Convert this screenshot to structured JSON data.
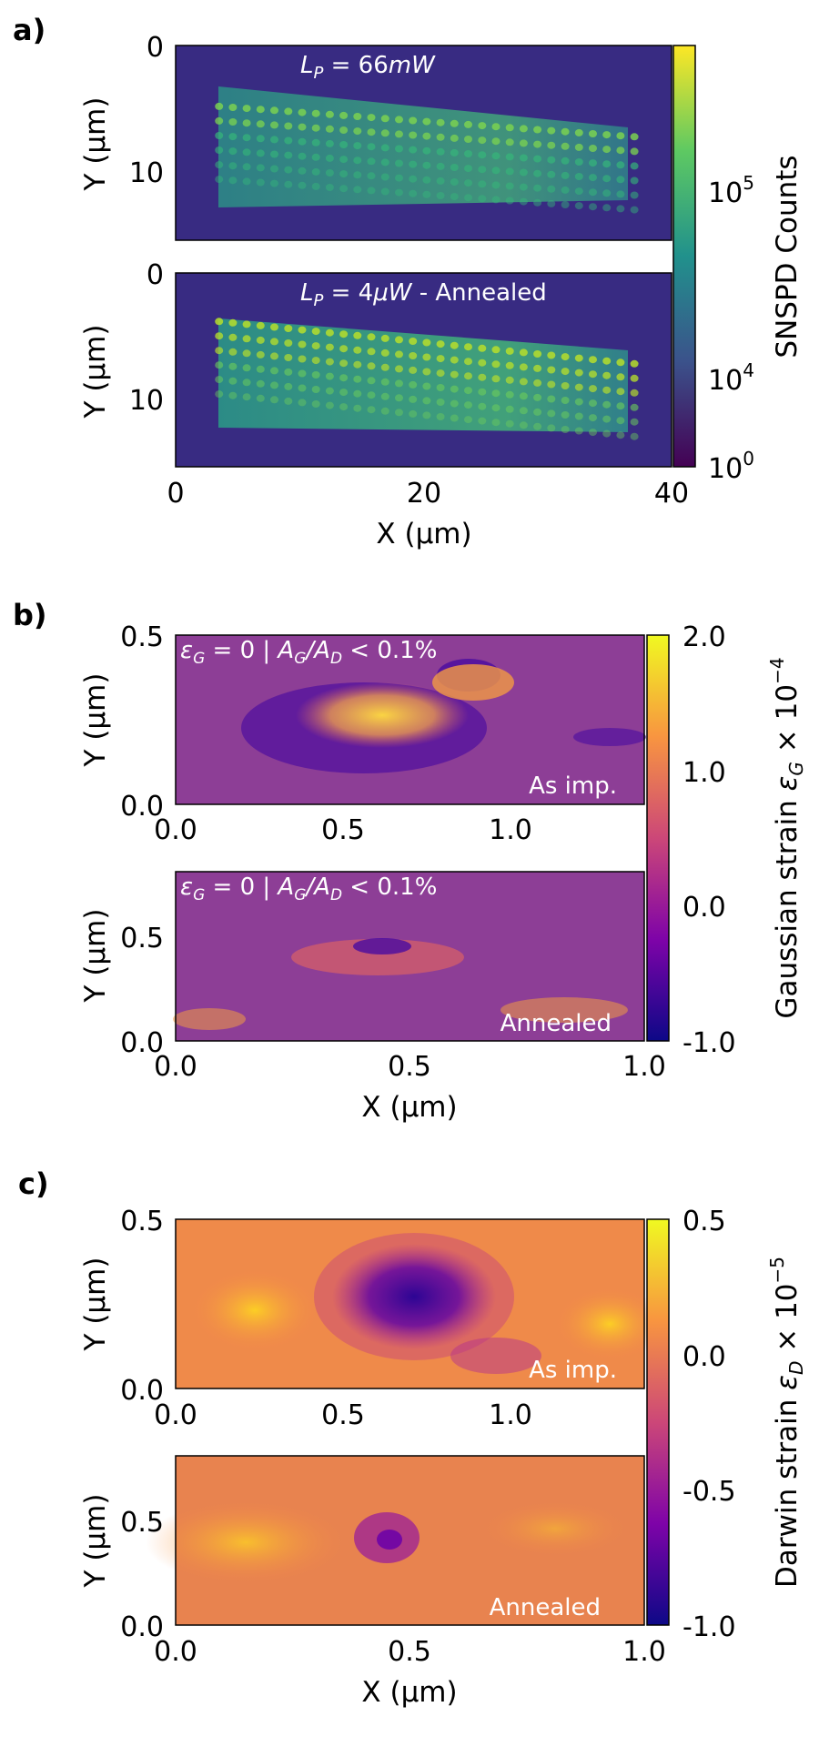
{
  "chart_data": [
    {
      "panel": "a)",
      "type": "heatmap",
      "colormap": "viridis",
      "colorbar": {
        "label": "SNSPD Counts",
        "ticks": [
          "10^5",
          "10^4",
          "10^0"
        ]
      },
      "xlabel": "X (μm)",
      "xticks": [
        "0",
        "20",
        "40"
      ],
      "xlim": [
        0,
        40
      ],
      "subplots": [
        {
          "annotation": "L_P = 66mW",
          "ylabel": "Y (μm)",
          "yticks": [
            "0",
            "10"
          ],
          "ylim": [
            16,
            0
          ],
          "feature": {
            "x_range": [
              3.5,
              37
            ],
            "y_top_left": 5,
            "y_top_right": 7.5,
            "rows": 6,
            "columns": 31
          }
        },
        {
          "annotation": "L_P = 4μW - Annealed",
          "ylabel": "Y (μm)",
          "yticks": [
            "0",
            "10"
          ],
          "ylim": [
            16,
            0
          ],
          "feature": {
            "x_range": [
              3.5,
              37
            ],
            "y_top_left": 4,
            "y_top_right": 7.5,
            "rows": 6,
            "columns": 31
          }
        }
      ]
    },
    {
      "panel": "b)",
      "type": "heatmap",
      "colormap": "plasma",
      "colorbar": {
        "label": "Gaussian strain ε_G × 10^-4",
        "ticks": [
          "2.0",
          "1.0",
          "0.0",
          "-1.0"
        ],
        "range": [
          -1.0,
          2.0
        ]
      },
      "xlabel": "X (μm)",
      "subplots": [
        {
          "annotation": "ε_G = 0 | A_G/A_D < 0.1%",
          "corner_label": "As imp.",
          "ylabel": "Y (μm)",
          "xticks": [
            "0.0",
            "0.5",
            "1.0"
          ],
          "yticks": [
            "0.0",
            "0.5"
          ],
          "xlim": [
            0,
            1.4
          ],
          "ylim": [
            0,
            0.5
          ],
          "background_value": 0.0
        },
        {
          "annotation": "ε_G = 0 | A_G/A_D < 0.1%",
          "corner_label": "Annealed",
          "ylabel": "Y (μm)",
          "xticks": [
            "0.0",
            "0.5",
            "1.0"
          ],
          "yticks": [
            "0.0",
            "0.5"
          ],
          "xlim": [
            0,
            1.0
          ],
          "ylim": [
            0,
            0.78
          ],
          "background_value": 0.0
        }
      ]
    },
    {
      "panel": "c)",
      "type": "heatmap",
      "colormap": "plasma",
      "colorbar": {
        "label": "Darwin strain ε_D × 10^-5",
        "ticks": [
          "0.5",
          "0.0",
          "-0.5",
          "-1.0"
        ],
        "range": [
          -1.0,
          0.5
        ]
      },
      "xlabel": "X (μm)",
      "subplots": [
        {
          "corner_label": "As imp.",
          "ylabel": "Y (μm)",
          "xticks": [
            "0.0",
            "0.5",
            "1.0"
          ],
          "yticks": [
            "0.0",
            "0.5"
          ],
          "xlim": [
            0,
            1.4
          ],
          "ylim": [
            0,
            0.5
          ]
        },
        {
          "corner_label": "Annealed",
          "ylabel": "Y (μm)",
          "xticks": [
            "0.0",
            "0.5",
            "1.0"
          ],
          "yticks": [
            "0.0",
            "0.5"
          ],
          "xlim": [
            0,
            1.0
          ],
          "ylim": [
            0,
            0.78
          ]
        }
      ]
    }
  ]
}
